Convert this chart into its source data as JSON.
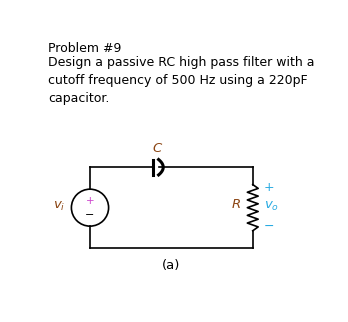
{
  "title_line1": "Problem #9",
  "body_text": "Design a passive RC high pass filter with a\ncutoff frequency of 500 Hz using a 220pF\ncapacitor.",
  "label_a": "(a)",
  "bg_color": "#ffffff",
  "text_color": "#000000",
  "circuit_color": "#000000",
  "label_color": "#8B4513",
  "cyan_color": "#29ABE2",
  "vi_color": "#8B4513",
  "R_color": "#8B4513"
}
